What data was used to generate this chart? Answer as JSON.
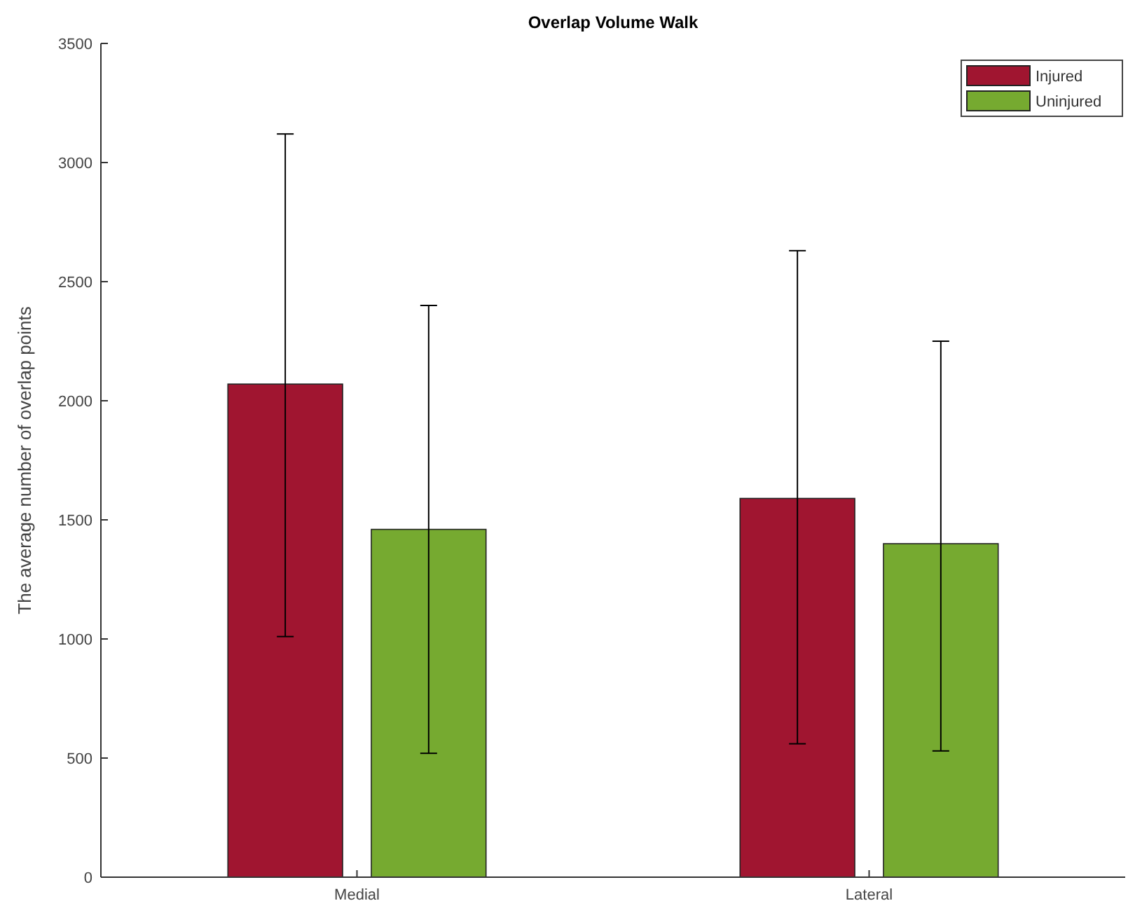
{
  "chart_data": {
    "type": "bar",
    "title": "Overlap Volume Walk",
    "ylabel": "The average number of overlap points",
    "categories": [
      "Medial",
      "Lateral"
    ],
    "series": [
      {
        "name": "Injured",
        "color": "#a01530",
        "values": [
          2070,
          1590
        ],
        "errors": [
          [
            1010,
            3120
          ],
          [
            560,
            2630
          ]
        ]
      },
      {
        "name": "Uninjured",
        "color": "#76aa30",
        "values": [
          1460,
          1400
        ],
        "errors": [
          [
            520,
            2400
          ],
          [
            530,
            2250
          ]
        ]
      }
    ],
    "ylim": [
      0,
      3500
    ],
    "yticks": [
      0,
      500,
      1000,
      1500,
      2000,
      2500,
      3000,
      3500
    ],
    "grid": false,
    "legend": "top right"
  }
}
